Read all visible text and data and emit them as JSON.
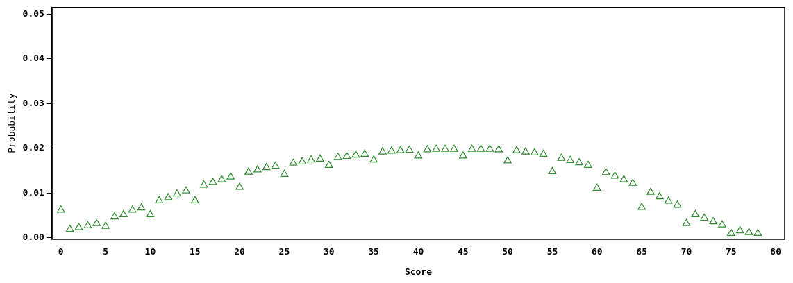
{
  "chart_data": {
    "type": "scatter",
    "xlabel": "Score",
    "ylabel": "Probability",
    "marker": "triangle",
    "grid": false,
    "legend": false,
    "xlim": [
      -1,
      81
    ],
    "xticks": [
      0,
      5,
      10,
      15,
      20,
      25,
      30,
      35,
      40,
      45,
      50,
      55,
      60,
      65,
      70,
      75,
      80
    ],
    "ylim": [
      -0.0003,
      0.0515
    ],
    "yticks": [
      {
        "value": 0,
        "label": "0.00"
      },
      {
        "value": 0.01,
        "label": "0.01"
      },
      {
        "value": 0.02,
        "label": "0.02"
      },
      {
        "value": 0.03,
        "label": "0.03"
      },
      {
        "value": 0.04,
        "label": "0.04"
      },
      {
        "value": 0.05,
        "label": "0.05"
      }
    ],
    "series": [
      {
        "color": "#2e8b2e",
        "x": [
          0,
          1,
          2,
          3,
          4,
          5,
          6,
          7,
          8,
          9,
          10,
          11,
          12,
          13,
          14,
          15,
          16,
          17,
          18,
          19,
          20,
          21,
          22,
          23,
          24,
          25,
          26,
          27,
          28,
          29,
          30,
          31,
          32,
          33,
          34,
          35,
          36,
          37,
          38,
          39,
          40,
          41,
          42,
          43,
          44,
          45,
          46,
          47,
          48,
          49,
          50,
          51,
          52,
          53,
          54,
          55,
          56,
          57,
          58,
          59,
          60,
          61,
          62,
          63,
          64,
          65,
          66,
          67,
          68,
          69,
          70,
          71,
          72,
          73,
          74,
          75,
          76,
          77,
          78
        ],
        "values": [
          0.0062,
          0.0019,
          0.0023,
          0.0027,
          0.0032,
          0.0026,
          0.0047,
          0.0052,
          0.0062,
          0.0067,
          0.0052,
          0.0083,
          0.009,
          0.0098,
          0.0105,
          0.0083,
          0.0118,
          0.0124,
          0.013,
          0.0136,
          0.0113,
          0.0147,
          0.0152,
          0.0157,
          0.016,
          0.0142,
          0.0167,
          0.017,
          0.0174,
          0.0176,
          0.0162,
          0.018,
          0.0182,
          0.0185,
          0.0187,
          0.0174,
          0.0192,
          0.0194,
          0.0195,
          0.0196,
          0.0183,
          0.0197,
          0.0198,
          0.0198,
          0.0198,
          0.0183,
          0.0198,
          0.0198,
          0.0198,
          0.0197,
          0.0172,
          0.0195,
          0.0192,
          0.019,
          0.0187,
          0.0148,
          0.0178,
          0.0173,
          0.0168,
          0.0162,
          0.0111,
          0.0146,
          0.0138,
          0.013,
          0.0122,
          0.0068,
          0.0102,
          0.0092,
          0.0082,
          0.0073,
          0.0032,
          0.0052,
          0.0044,
          0.0036,
          0.0029,
          0.001,
          0.0016,
          0.0012,
          0.001
        ]
      }
    ]
  }
}
